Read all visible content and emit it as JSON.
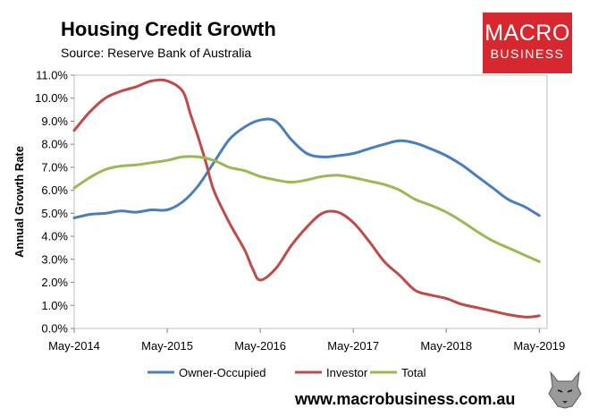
{
  "header": {
    "title": "Housing Credit Growth",
    "source": "Source: Reserve Bank of Australia"
  },
  "logo": {
    "line1": "MACRO",
    "line2": "BUSINESS"
  },
  "footer": {
    "url": "www.macrobusiness.com.au"
  },
  "colors": {
    "owner": "#4a7ebb",
    "investor": "#be4b48",
    "total": "#98b954",
    "logo_bg": "#d7282f"
  },
  "chart_data": {
    "type": "line",
    "title": "Housing Credit Growth",
    "ylabel": "Annual Growth Rate",
    "xlabel": "",
    "ylim": [
      0,
      11
    ],
    "yticks": [
      "0.0%",
      "1.0%",
      "2.0%",
      "3.0%",
      "4.0%",
      "5.0%",
      "6.0%",
      "7.0%",
      "8.0%",
      "9.0%",
      "10.0%",
      "11.0%"
    ],
    "xticks": [
      "May-2014",
      "May-2015",
      "May-2016",
      "May-2017",
      "May-2018",
      "May-2019"
    ],
    "xlim": [
      0,
      61
    ],
    "legend_position": "bottom",
    "series": [
      {
        "name": "Owner-Occupied",
        "color": "#4a7ebb",
        "x": [
          0,
          2,
          4,
          6,
          8,
          10,
          12,
          14,
          16,
          18,
          20,
          22,
          24,
          26,
          28,
          30,
          32,
          34,
          36,
          38,
          40,
          42,
          44,
          46,
          48,
          50,
          52,
          54,
          56,
          58,
          60
        ],
        "values": [
          4.8,
          4.95,
          5.0,
          5.1,
          5.05,
          5.15,
          5.15,
          5.5,
          6.2,
          7.2,
          8.2,
          8.75,
          9.05,
          9.0,
          8.2,
          7.6,
          7.45,
          7.5,
          7.6,
          7.8,
          8.0,
          8.15,
          8.05,
          7.8,
          7.5,
          7.1,
          6.6,
          6.1,
          5.6,
          5.3,
          4.9
        ]
      },
      {
        "name": "Investor",
        "color": "#be4b48",
        "x": [
          0,
          2,
          4,
          6,
          8,
          10,
          12,
          14,
          15,
          16,
          17,
          18,
          20,
          22,
          23,
          24,
          26,
          28,
          30,
          32,
          34,
          36,
          38,
          40,
          42,
          44,
          46,
          48,
          50,
          52,
          54,
          56,
          58,
          59,
          60
        ],
        "values": [
          8.6,
          9.4,
          10.0,
          10.3,
          10.5,
          10.75,
          10.75,
          10.3,
          9.3,
          8.3,
          7.2,
          6.0,
          4.6,
          3.4,
          2.6,
          2.1,
          2.6,
          3.6,
          4.4,
          5.0,
          5.05,
          4.6,
          3.8,
          2.9,
          2.3,
          1.65,
          1.45,
          1.3,
          1.05,
          0.9,
          0.75,
          0.6,
          0.5,
          0.5,
          0.55
        ]
      },
      {
        "name": "Total",
        "color": "#98b954",
        "x": [
          0,
          2,
          4,
          6,
          8,
          10,
          12,
          14,
          16,
          18,
          20,
          22,
          24,
          26,
          28,
          30,
          32,
          34,
          36,
          38,
          40,
          42,
          44,
          46,
          48,
          50,
          52,
          54,
          56,
          58,
          60
        ],
        "values": [
          6.1,
          6.55,
          6.9,
          7.05,
          7.1,
          7.2,
          7.3,
          7.45,
          7.45,
          7.3,
          7.0,
          6.85,
          6.6,
          6.45,
          6.35,
          6.45,
          6.6,
          6.65,
          6.55,
          6.4,
          6.25,
          6.0,
          5.6,
          5.35,
          5.05,
          4.65,
          4.2,
          3.8,
          3.5,
          3.2,
          2.9
        ]
      }
    ]
  }
}
